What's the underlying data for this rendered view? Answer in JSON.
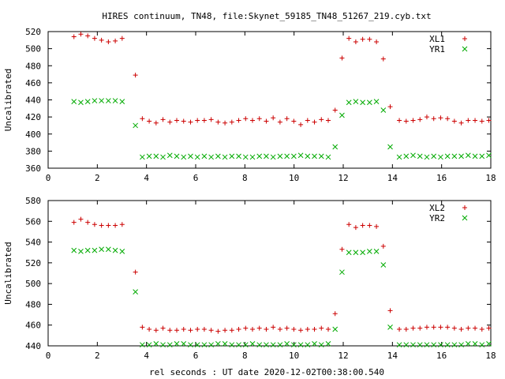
{
  "title": "HIRES continuum, TN48, file:Skynet_59185_TN48_51267_219.cyb.txt",
  "xlabel": "rel seconds : UT date 2020-12-02T00:38:00.540",
  "colors": {
    "plus": "#cc0000",
    "cross": "#00aa00",
    "axis": "#000000"
  },
  "chart_data": [
    {
      "type": "scatter",
      "ylabel": "Uncalibrated",
      "xlim": [
        0,
        18
      ],
      "ylim": [
        360,
        520
      ],
      "xticks": [
        0,
        2,
        4,
        6,
        8,
        10,
        12,
        14,
        16,
        18
      ],
      "yticks": [
        360,
        380,
        400,
        420,
        440,
        460,
        480,
        500,
        520
      ],
      "legend_position": "top-right",
      "series": [
        {
          "name": "XL1",
          "marker": "plus",
          "x": [
            1.05,
            1.33,
            1.61,
            1.89,
            2.17,
            2.45,
            2.73,
            3.01,
            3.55,
            3.83,
            4.11,
            4.39,
            4.67,
            4.95,
            5.23,
            5.51,
            5.79,
            6.07,
            6.35,
            6.63,
            6.91,
            7.19,
            7.47,
            7.75,
            8.03,
            8.31,
            8.59,
            8.87,
            9.15,
            9.43,
            9.71,
            9.99,
            10.27,
            10.55,
            10.83,
            11.11,
            11.39,
            11.67,
            11.95,
            12.23,
            12.51,
            12.79,
            13.07,
            13.35,
            13.63,
            13.91,
            14.28,
            14.56,
            14.84,
            15.12,
            15.4,
            15.68,
            15.96,
            16.24,
            16.52,
            16.8,
            17.08,
            17.36,
            17.64,
            17.92
          ],
          "y": [
            514,
            517,
            515,
            512,
            510,
            508,
            509,
            512,
            469,
            418,
            415,
            413,
            417,
            414,
            416,
            415,
            414,
            416,
            416,
            417,
            414,
            413,
            414,
            416,
            418,
            416,
            418,
            415,
            419,
            414,
            418,
            415,
            411,
            416,
            414,
            417,
            416,
            428,
            489,
            512,
            508,
            511,
            511,
            508,
            488,
            432,
            416,
            415,
            416,
            417,
            420,
            418,
            419,
            418,
            415,
            413,
            416,
            416,
            415,
            416
          ]
        },
        {
          "name": "YR1",
          "marker": "cross",
          "x": [
            1.05,
            1.33,
            1.61,
            1.89,
            2.17,
            2.45,
            2.73,
            3.01,
            3.55,
            3.83,
            4.11,
            4.39,
            4.67,
            4.95,
            5.23,
            5.51,
            5.79,
            6.07,
            6.35,
            6.63,
            6.91,
            7.19,
            7.47,
            7.75,
            8.03,
            8.31,
            8.59,
            8.87,
            9.15,
            9.43,
            9.71,
            9.99,
            10.27,
            10.55,
            10.83,
            11.11,
            11.39,
            11.67,
            11.95,
            12.23,
            12.51,
            12.79,
            13.07,
            13.35,
            13.63,
            13.91,
            14.28,
            14.56,
            14.84,
            15.12,
            15.4,
            15.68,
            15.96,
            16.24,
            16.52,
            16.8,
            17.08,
            17.36,
            17.64,
            17.92
          ],
          "y": [
            438,
            437,
            438,
            439,
            439,
            439,
            439,
            438,
            410,
            373,
            374,
            374,
            373,
            375,
            374,
            373,
            374,
            373,
            374,
            373,
            374,
            373,
            374,
            374,
            373,
            373,
            374,
            374,
            373,
            374,
            374,
            374,
            375,
            374,
            374,
            374,
            373,
            385,
            422,
            437,
            438,
            437,
            437,
            438,
            428,
            385,
            373,
            374,
            375,
            374,
            373,
            374,
            373,
            374,
            374,
            374,
            375,
            374,
            374,
            375
          ]
        }
      ]
    },
    {
      "type": "scatter",
      "ylabel": "Uncalibrated",
      "xlim": [
        0,
        18
      ],
      "ylim": [
        440,
        580
      ],
      "xticks": [
        0,
        2,
        4,
        6,
        8,
        10,
        12,
        14,
        16,
        18
      ],
      "yticks": [
        440,
        460,
        480,
        500,
        520,
        540,
        560,
        580
      ],
      "legend_position": "top-right",
      "series": [
        {
          "name": "XL2",
          "marker": "plus",
          "x": [
            1.05,
            1.33,
            1.61,
            1.89,
            2.17,
            2.45,
            2.73,
            3.01,
            3.55,
            3.83,
            4.11,
            4.39,
            4.67,
            4.95,
            5.23,
            5.51,
            5.79,
            6.07,
            6.35,
            6.63,
            6.91,
            7.19,
            7.47,
            7.75,
            8.03,
            8.31,
            8.59,
            8.87,
            9.15,
            9.43,
            9.71,
            9.99,
            10.27,
            10.55,
            10.83,
            11.11,
            11.39,
            11.67,
            11.95,
            12.23,
            12.51,
            12.79,
            13.07,
            13.35,
            13.63,
            13.91,
            14.28,
            14.56,
            14.84,
            15.12,
            15.4,
            15.68,
            15.96,
            16.24,
            16.52,
            16.8,
            17.08,
            17.36,
            17.64,
            17.92
          ],
          "y": [
            559,
            562,
            559,
            557,
            556,
            556,
            556,
            557,
            511,
            458,
            456,
            455,
            457,
            455,
            455,
            456,
            455,
            456,
            456,
            455,
            454,
            455,
            455,
            456,
            457,
            456,
            457,
            456,
            458,
            456,
            457,
            456,
            455,
            456,
            456,
            457,
            456,
            471,
            533,
            557,
            554,
            556,
            556,
            555,
            536,
            474,
            456,
            456,
            457,
            457,
            458,
            458,
            458,
            458,
            457,
            456,
            457,
            457,
            456,
            457
          ]
        },
        {
          "name": "YR2",
          "marker": "cross",
          "x": [
            1.05,
            1.33,
            1.61,
            1.89,
            2.17,
            2.45,
            2.73,
            3.01,
            3.55,
            3.83,
            4.11,
            4.39,
            4.67,
            4.95,
            5.23,
            5.51,
            5.79,
            6.07,
            6.35,
            6.63,
            6.91,
            7.19,
            7.47,
            7.75,
            8.03,
            8.31,
            8.59,
            8.87,
            9.15,
            9.43,
            9.71,
            9.99,
            10.27,
            10.55,
            10.83,
            11.11,
            11.39,
            11.67,
            11.95,
            12.23,
            12.51,
            12.79,
            13.07,
            13.35,
            13.63,
            13.91,
            14.28,
            14.56,
            14.84,
            15.12,
            15.4,
            15.68,
            15.96,
            16.24,
            16.52,
            16.8,
            17.08,
            17.36,
            17.64,
            17.92
          ],
          "y": [
            532,
            531,
            532,
            532,
            533,
            533,
            532,
            531,
            492,
            441,
            441,
            442,
            441,
            441,
            442,
            442,
            441,
            441,
            441,
            441,
            442,
            442,
            441,
            441,
            441,
            442,
            441,
            441,
            441,
            441,
            442,
            441,
            441,
            441,
            442,
            441,
            442,
            456,
            511,
            530,
            530,
            530,
            531,
            531,
            518,
            458,
            441,
            441,
            441,
            441,
            441,
            441,
            441,
            441,
            441,
            441,
            442,
            442,
            441,
            442
          ]
        }
      ]
    }
  ]
}
